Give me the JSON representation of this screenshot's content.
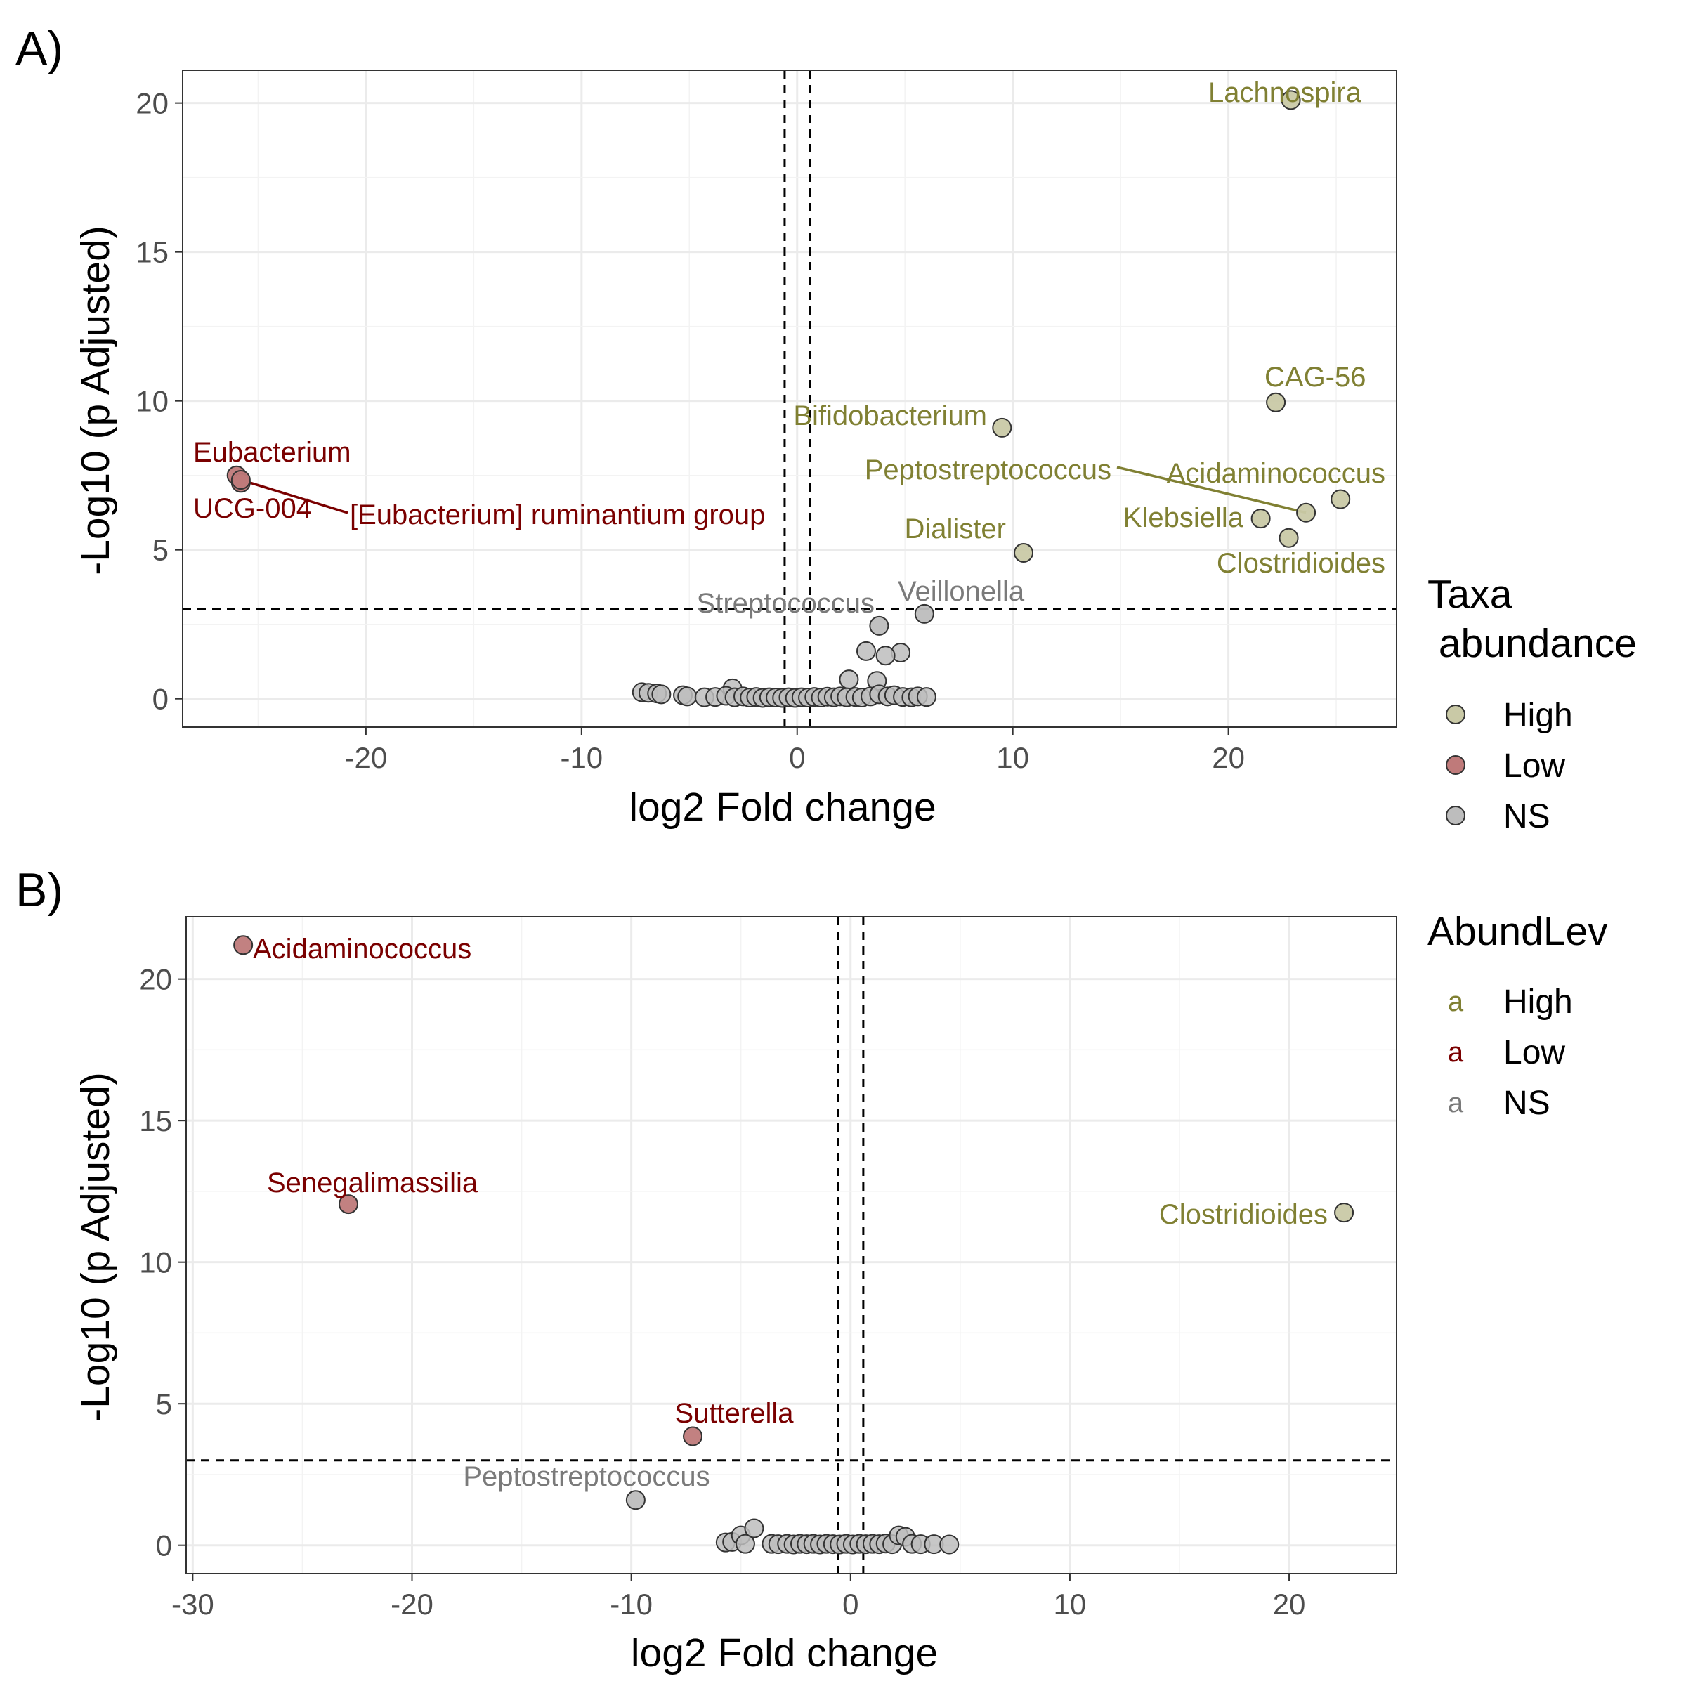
{
  "colors": {
    "High": "#808033",
    "Low": "#7a0000",
    "NS": "#7a7a7a"
  },
  "panels": [
    {
      "label": "A)"
    },
    {
      "label": "B)"
    }
  ],
  "legends": [
    {
      "title_line1": "Taxa",
      "title_line2": " abundance",
      "glyph": "point",
      "items": [
        {
          "key": "High",
          "label": "High",
          "fill": "#c9c9a6"
        },
        {
          "key": "Low",
          "label": "Low",
          "fill": "#bf7a7a"
        },
        {
          "key": "NS",
          "label": "NS",
          "fill": "#bdbdbd"
        }
      ]
    },
    {
      "title_line1": "AbundLev",
      "title_line2": "",
      "glyph": "a",
      "items": [
        {
          "key": "High",
          "label": "High"
        },
        {
          "key": "Low",
          "label": "Low"
        },
        {
          "key": "NS",
          "label": "NS"
        }
      ]
    }
  ],
  "chart_data": [
    {
      "type": "scatter",
      "title": "",
      "xlabel": "log2 Fold change",
      "ylabel": "-Log10 (p Adjusted)",
      "xlim": [
        -28.5,
        27.8
      ],
      "ylim": [
        -0.95,
        21.1
      ],
      "xticks": [
        -20,
        -10,
        0,
        10,
        20
      ],
      "xtick_labels": [
        "-20",
        "-10",
        "0",
        "10",
        "20"
      ],
      "yticks": [
        0,
        5,
        10,
        15,
        20
      ],
      "ytick_labels": [
        "0",
        "5",
        "10",
        "15",
        "20"
      ],
      "vlines": [
        -0.58,
        0.58
      ],
      "hline": 3,
      "grid": true,
      "legend": "right",
      "labeled_points": [
        {
          "name": "Lachnospira",
          "group": "High",
          "x": 22.9,
          "y": 20.1
        },
        {
          "name": "CAG-56",
          "group": "High",
          "x": 22.2,
          "y": 9.95
        },
        {
          "name": "Bifidobacterium",
          "group": "High",
          "x": 9.5,
          "y": 9.1
        },
        {
          "name": "Acidaminococcus",
          "group": "High",
          "x": 23.6,
          "y": 6.25
        },
        {
          "name": "Peptostreptococcus",
          "group": "High",
          "x": 25.2,
          "y": 6.7
        },
        {
          "name": "Klebsiella",
          "group": "High",
          "x": 21.5,
          "y": 6.05
        },
        {
          "name": "Clostridioides",
          "group": "High",
          "x": 22.8,
          "y": 5.4
        },
        {
          "name": "Dialister",
          "group": "High",
          "x": 10.5,
          "y": 4.9
        },
        {
          "name": "Eubacterium",
          "group": "Low",
          "x": -26.0,
          "y": 7.5
        },
        {
          "name": "UCG-004",
          "group": "Low",
          "x": -25.8,
          "y": 7.25
        },
        {
          "name": "[Eubacterium] ruminantium group",
          "group": "Low",
          "x": -25.8,
          "y": 7.35
        },
        {
          "name": "Veillonella",
          "group": "NS",
          "x": 5.9,
          "y": 2.85
        },
        {
          "name": "Streptococcus",
          "group": "NS",
          "x": 3.8,
          "y": 2.45
        }
      ],
      "ns_points": [
        {
          "x": 3.2,
          "y": 1.6
        },
        {
          "x": 4.8,
          "y": 1.55
        },
        {
          "x": 4.1,
          "y": 1.45
        },
        {
          "x": 2.4,
          "y": 0.65
        },
        {
          "x": 3.7,
          "y": 0.6
        },
        {
          "x": -3.0,
          "y": 0.35
        },
        {
          "x": -7.2,
          "y": 0.22
        },
        {
          "x": -6.9,
          "y": 0.2
        },
        {
          "x": -6.5,
          "y": 0.18
        },
        {
          "x": -6.3,
          "y": 0.15
        },
        {
          "x": -5.3,
          "y": 0.12
        },
        {
          "x": -5.1,
          "y": 0.08
        },
        {
          "x": -4.3,
          "y": 0.05
        },
        {
          "x": -3.8,
          "y": 0.06
        },
        {
          "x": -3.3,
          "y": 0.1
        },
        {
          "x": -2.9,
          "y": 0.05
        },
        {
          "x": -2.5,
          "y": 0.08
        },
        {
          "x": -2.2,
          "y": 0.04
        },
        {
          "x": -1.9,
          "y": 0.06
        },
        {
          "x": -1.6,
          "y": 0.03
        },
        {
          "x": -1.3,
          "y": 0.05
        },
        {
          "x": -1.0,
          "y": 0.04
        },
        {
          "x": -0.7,
          "y": 0.03
        },
        {
          "x": -0.4,
          "y": 0.05
        },
        {
          "x": -0.1,
          "y": 0.03
        },
        {
          "x": 0.2,
          "y": 0.05
        },
        {
          "x": 0.5,
          "y": 0.04
        },
        {
          "x": 0.8,
          "y": 0.06
        },
        {
          "x": 1.1,
          "y": 0.04
        },
        {
          "x": 1.4,
          "y": 0.07
        },
        {
          "x": 1.7,
          "y": 0.05
        },
        {
          "x": 2.0,
          "y": 0.08
        },
        {
          "x": 2.3,
          "y": 0.05
        },
        {
          "x": 2.7,
          "y": 0.06
        },
        {
          "x": 3.0,
          "y": 0.04
        },
        {
          "x": 3.4,
          "y": 0.08
        },
        {
          "x": 3.8,
          "y": 0.15
        },
        {
          "x": 4.2,
          "y": 0.08
        },
        {
          "x": 4.5,
          "y": 0.12
        },
        {
          "x": 4.9,
          "y": 0.06
        },
        {
          "x": 5.3,
          "y": 0.05
        },
        {
          "x": 5.6,
          "y": 0.08
        },
        {
          "x": 6.0,
          "y": 0.06
        }
      ]
    },
    {
      "type": "scatter",
      "title": "",
      "xlabel": "log2 Fold change",
      "ylabel": "-Log10 (p Adjusted)",
      "xlim": [
        -30.3,
        24.9
      ],
      "ylim": [
        -1.0,
        22.2
      ],
      "xticks": [
        -30,
        -20,
        -10,
        0,
        10,
        20
      ],
      "xtick_labels": [
        "-30",
        "-20",
        "-10",
        "0",
        "10",
        "20"
      ],
      "yticks": [
        0,
        5,
        10,
        15,
        20
      ],
      "ytick_labels": [
        "0",
        "5",
        "10",
        "15",
        "20"
      ],
      "vlines": [
        -0.58,
        0.58
      ],
      "hline": 3,
      "grid": true,
      "legend": "right",
      "labeled_points": [
        {
          "name": "Acidaminococcus",
          "group": "Low",
          "x": -27.7,
          "y": 21.2
        },
        {
          "name": "Senegalimassilia",
          "group": "Low",
          "x": -22.9,
          "y": 12.05
        },
        {
          "name": "Sutterella",
          "group": "Low",
          "x": -7.2,
          "y": 3.85
        },
        {
          "name": "Clostridioides",
          "group": "High",
          "x": 22.5,
          "y": 11.75
        },
        {
          "name": "Peptostreptococcus",
          "group": "NS",
          "x": -9.8,
          "y": 1.6
        }
      ],
      "ns_points": [
        {
          "x": -5.7,
          "y": 0.1
        },
        {
          "x": -5.4,
          "y": 0.12
        },
        {
          "x": -5.0,
          "y": 0.35
        },
        {
          "x": -4.8,
          "y": 0.05
        },
        {
          "x": -4.4,
          "y": 0.6
        },
        {
          "x": -3.6,
          "y": 0.05
        },
        {
          "x": -3.3,
          "y": 0.04
        },
        {
          "x": -2.9,
          "y": 0.05
        },
        {
          "x": -2.6,
          "y": 0.03
        },
        {
          "x": -2.3,
          "y": 0.05
        },
        {
          "x": -2.0,
          "y": 0.04
        },
        {
          "x": -1.7,
          "y": 0.05
        },
        {
          "x": -1.4,
          "y": 0.03
        },
        {
          "x": -1.1,
          "y": 0.05
        },
        {
          "x": -0.8,
          "y": 0.04
        },
        {
          "x": -0.5,
          "y": 0.03
        },
        {
          "x": -0.2,
          "y": 0.05
        },
        {
          "x": 0.1,
          "y": 0.03
        },
        {
          "x": 0.4,
          "y": 0.05
        },
        {
          "x": 0.7,
          "y": 0.04
        },
        {
          "x": 1.0,
          "y": 0.05
        },
        {
          "x": 1.3,
          "y": 0.04
        },
        {
          "x": 1.6,
          "y": 0.06
        },
        {
          "x": 1.9,
          "y": 0.04
        },
        {
          "x": 2.2,
          "y": 0.35
        },
        {
          "x": 2.5,
          "y": 0.3
        },
        {
          "x": 2.8,
          "y": 0.05
        },
        {
          "x": 3.2,
          "y": 0.04
        },
        {
          "x": 3.8,
          "y": 0.04
        },
        {
          "x": 4.5,
          "y": 0.03
        }
      ]
    }
  ]
}
